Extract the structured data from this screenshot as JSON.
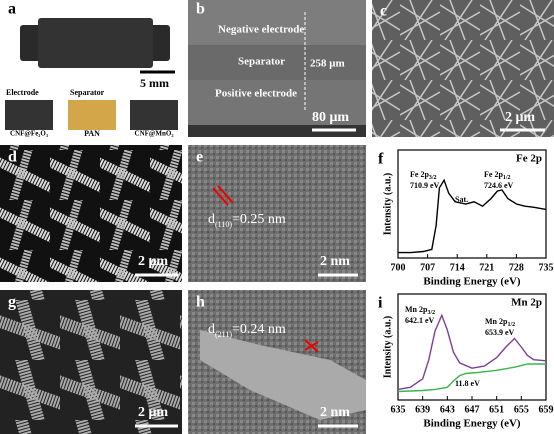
{
  "panels": [
    {
      "label": "a",
      "texts": [
        "5 mm",
        "Electrode",
        "Separator",
        "PAN",
        "CNF@Fe₂O₃",
        "CNF@MnO₂"
      ]
    },
    {
      "label": "b",
      "texts": [
        "Negative electrode",
        "Separator",
        "Positive electrode",
        "258 μm",
        "80 μm"
      ]
    },
    {
      "label": "c",
      "texts": [
        "2 μm"
      ]
    },
    {
      "label": "d",
      "texts": [
        "2 μm"
      ]
    },
    {
      "label": "e",
      "texts": [
        "d",
        "(110)",
        "=0.25 nm",
        "2 nm"
      ]
    },
    {
      "label": "f"
    },
    {
      "label": "g",
      "texts": [
        "2 μm"
      ]
    },
    {
      "label": "h",
      "texts": [
        "d",
        "(211)",
        "=0.24 nm",
        "2 nm"
      ]
    },
    {
      "label": "i"
    }
  ],
  "charts": [
    {
      "type": "line",
      "xlabel": "Binding Energy (eV)",
      "ylabel": "Intensity (a.u.)",
      "tag": "Fe 2p",
      "xlim": [
        700,
        735
      ],
      "xticks": [
        700,
        707,
        714,
        721,
        728,
        735
      ],
      "ylim": [
        0,
        1
      ],
      "annotations": [
        {
          "text": "Fe 2p",
          "sub": "3/2",
          "value": "710.9 eV"
        },
        {
          "text": "Fe 2p",
          "sub": "1/2",
          "value": "724.6 eV"
        },
        {
          "text": "Sat."
        }
      ],
      "series": [
        {
          "color": "#000000",
          "x": [
            700,
            703,
            706,
            708,
            709,
            709.8,
            710.9,
            712,
            713.5,
            716,
            718,
            720,
            722,
            723.5,
            724.6,
            726,
            728,
            730,
            732,
            735
          ],
          "values": [
            0.05,
            0.05,
            0.06,
            0.08,
            0.3,
            0.65,
            0.72,
            0.6,
            0.52,
            0.5,
            0.52,
            0.48,
            0.55,
            0.62,
            0.63,
            0.55,
            0.5,
            0.48,
            0.47,
            0.45
          ]
        }
      ]
    },
    {
      "type": "line",
      "xlabel": "Binding Energy (eV)",
      "ylabel": "Intensity (a.u.)",
      "tag": "Mn 2p",
      "xlim": [
        635,
        659
      ],
      "xticks": [
        635,
        639,
        643,
        647,
        651,
        655,
        659
      ],
      "ylim": [
        0,
        1
      ],
      "annotations": [
        {
          "text": "Mn 2p",
          "sub": "3/2",
          "value": "642.1 eV"
        },
        {
          "text": "Mn 2p",
          "sub": "1/2",
          "value": "653.9 eV"
        },
        {
          "text": "11.8 eV"
        }
      ],
      "series": [
        {
          "color": "#7b3f9e",
          "x": [
            635,
            637,
            639,
            640,
            641,
            642.1,
            643,
            644,
            645,
            647,
            649,
            651,
            652.5,
            653.9,
            655,
            656,
            657,
            659
          ],
          "values": [
            0.1,
            0.12,
            0.2,
            0.38,
            0.65,
            0.8,
            0.66,
            0.45,
            0.35,
            0.3,
            0.32,
            0.4,
            0.5,
            0.58,
            0.5,
            0.42,
            0.38,
            0.37
          ]
        },
        {
          "color": "#3cb44b",
          "x": [
            635,
            639,
            641,
            643,
            644,
            645,
            646,
            648,
            651,
            654,
            656,
            659
          ],
          "values": [
            0.08,
            0.09,
            0.1,
            0.12,
            0.18,
            0.23,
            0.25,
            0.26,
            0.28,
            0.31,
            0.34,
            0.34
          ]
        }
      ]
    }
  ]
}
